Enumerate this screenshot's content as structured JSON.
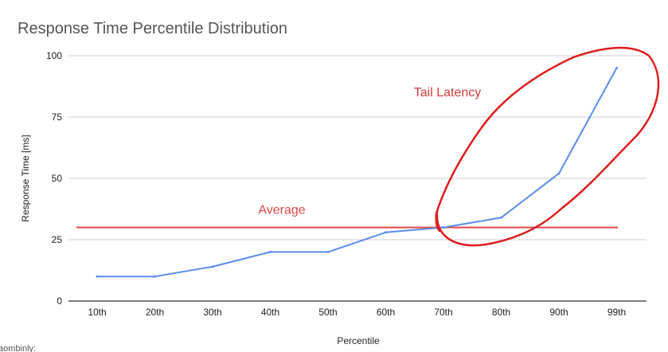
{
  "chart_data": {
    "type": "line",
    "title": "Response Time Percentile Distribution",
    "xlabel": "Percentile",
    "ylabel": "Response Time [ms]",
    "categories": [
      "10th",
      "20th",
      "30th",
      "40th",
      "50th",
      "60th",
      "70th",
      "80th",
      "90th",
      "99th"
    ],
    "series": [
      {
        "values": [
          10,
          10,
          14,
          20,
          20,
          28,
          30,
          34,
          52,
          95
        ],
        "color": "#5b8def"
      }
    ],
    "reference_line": {
      "label": "Average",
      "value": 30,
      "color": "#e04848"
    },
    "annotations": [
      {
        "text": "Tail Latency",
        "color": "#d33b3b",
        "shape": "hand-drawn red loop around 70th–99th"
      }
    ],
    "ylim": [
      0,
      100
    ],
    "yticks": [
      0,
      25,
      50,
      75,
      100
    ],
    "grid": true,
    "legend": "none"
  },
  "footer_text": "aombinly:"
}
